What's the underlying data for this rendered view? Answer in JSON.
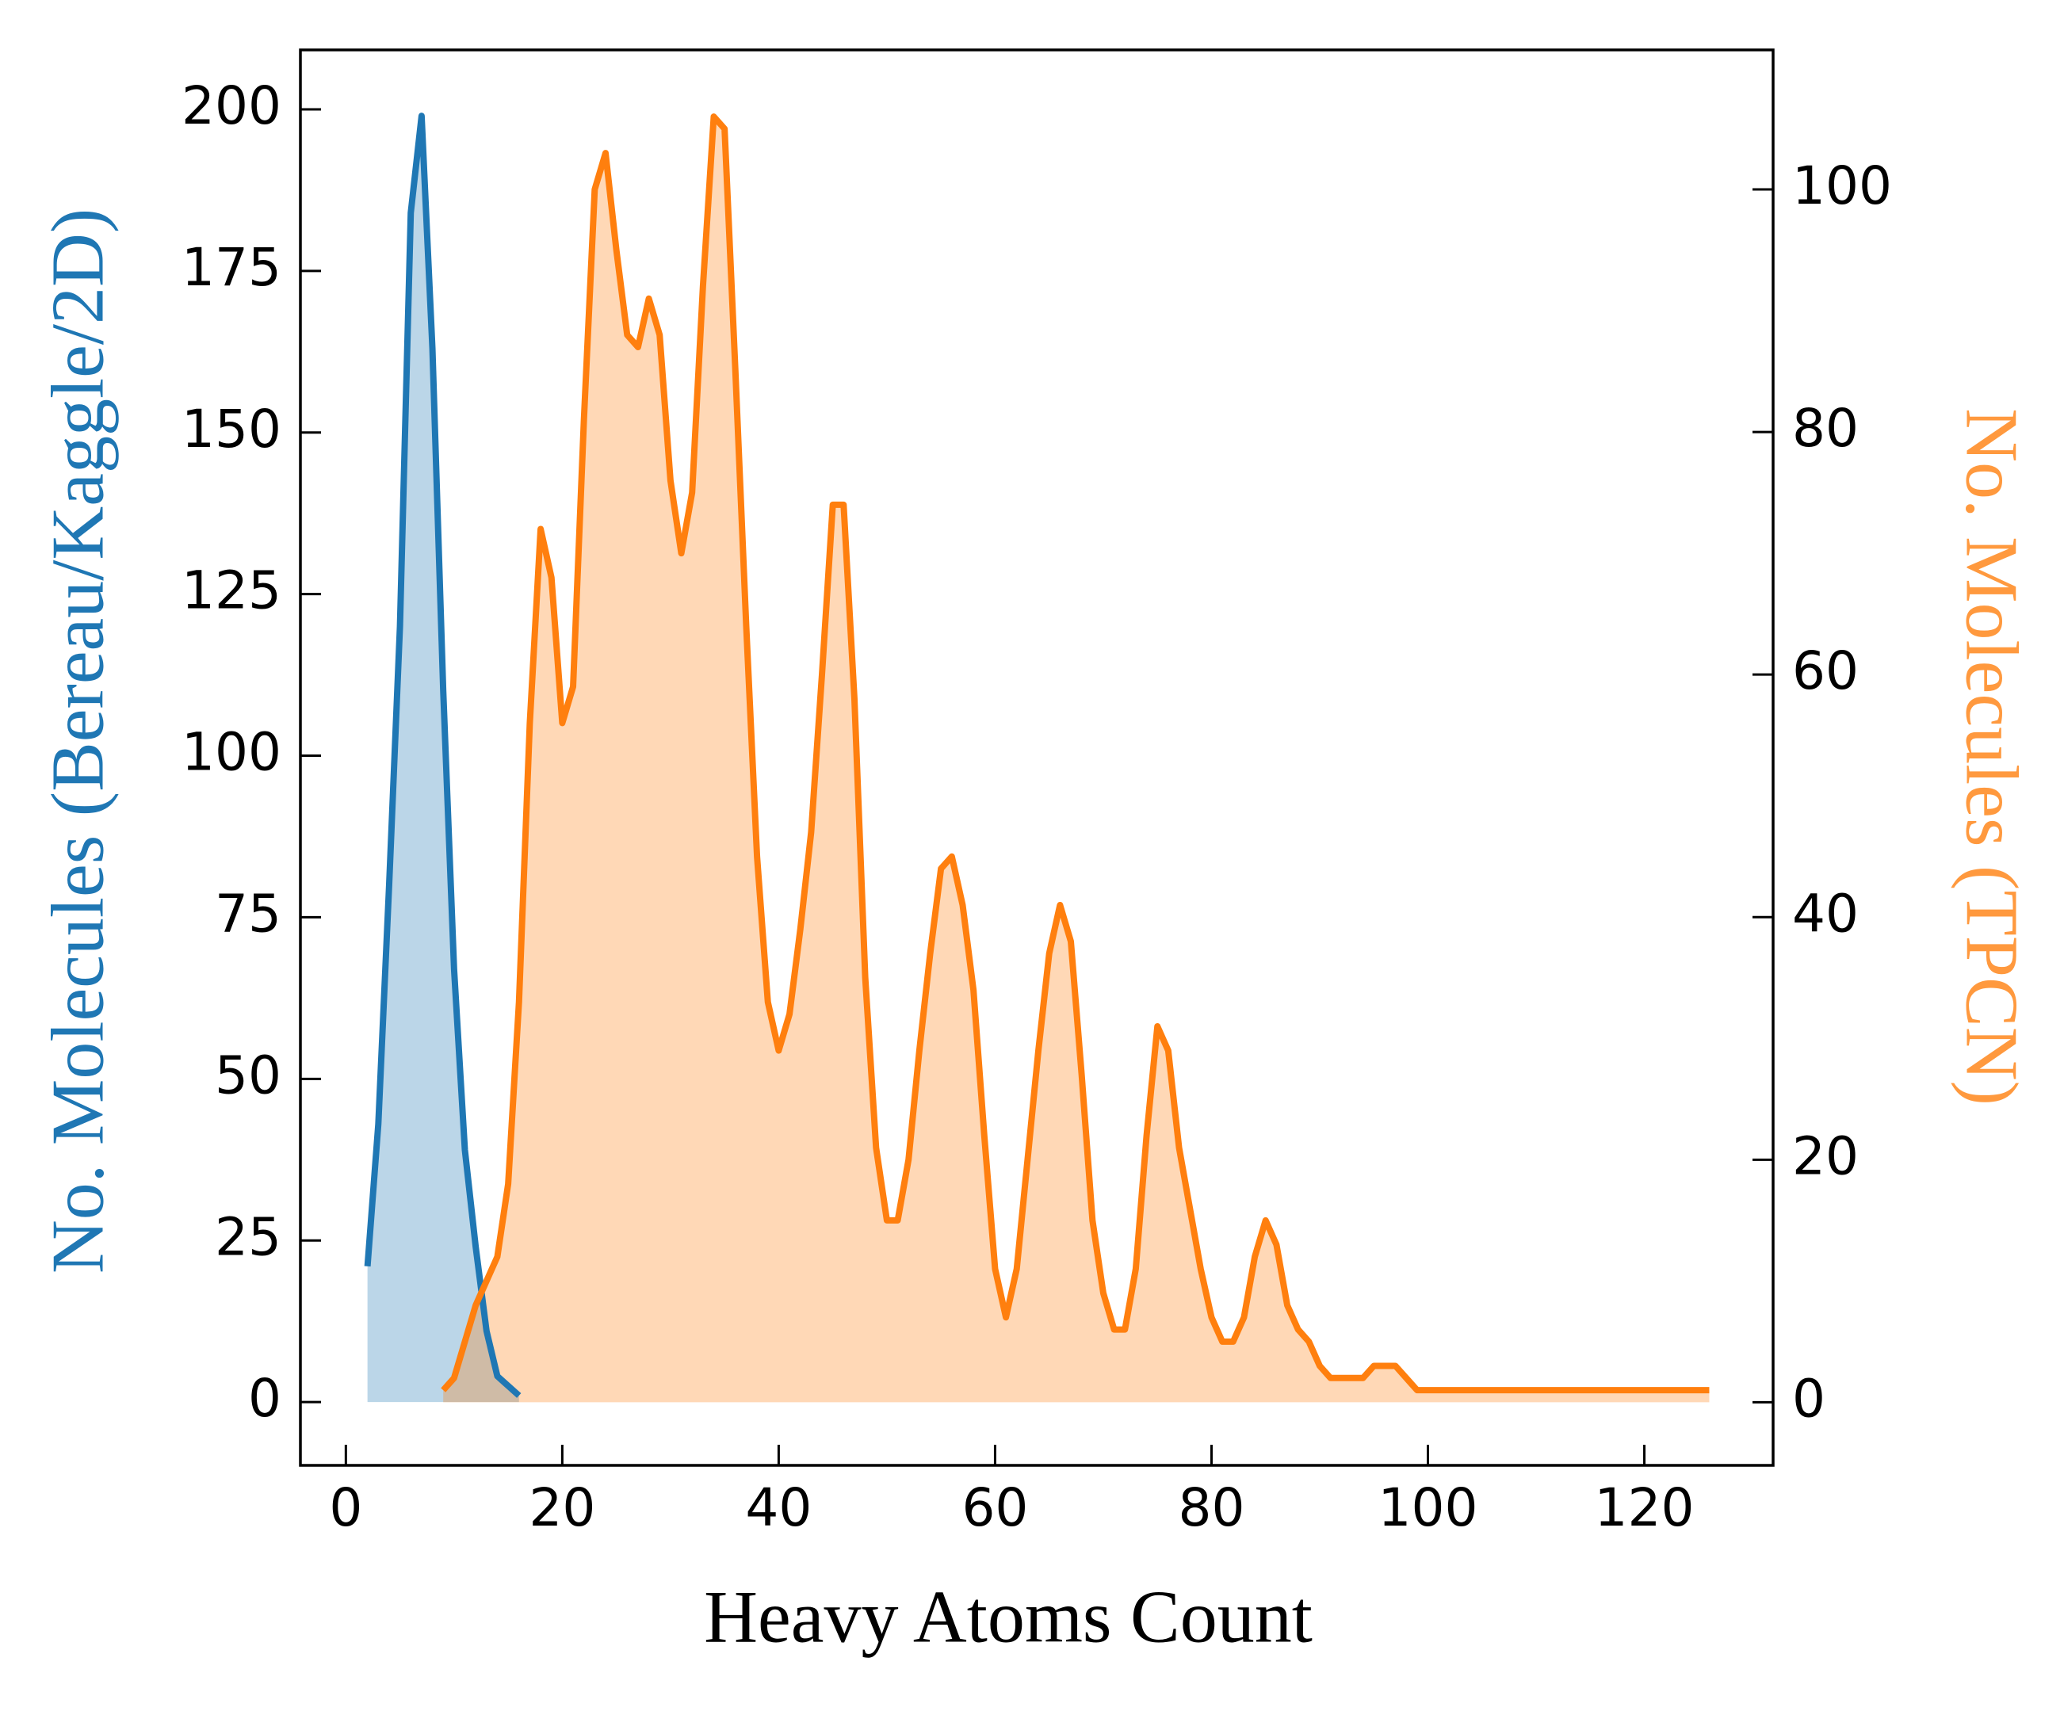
{
  "chart_data": {
    "type": "line",
    "xlabel": "Heavy Atoms Count",
    "ylabel": "No. Molecules (Bereau/Kaggle/2D)",
    "y2label": "No. Molecules (TPCN)",
    "xlim": [
      -4.2,
      131.9
    ],
    "xticks": [
      0,
      20,
      40,
      60,
      80,
      100,
      120
    ],
    "ylim": [
      -9.8,
      209.2
    ],
    "yticks": [
      0,
      25,
      50,
      75,
      100,
      125,
      150,
      175,
      200
    ],
    "y2lim": [
      -5.2,
      111.5
    ],
    "y2ticks": [
      0,
      20,
      40,
      60,
      80,
      100
    ],
    "fill": true,
    "series": [
      {
        "name": "Bereau/Kaggle/2D",
        "color": "#1f77b4",
        "axis": "y",
        "x": [
          2,
          3,
          4,
          5,
          6,
          7,
          8,
          9,
          10,
          11,
          12,
          13,
          14,
          15,
          16
        ],
        "values": [
          21,
          43,
          80,
          120,
          184,
          199,
          163,
          110,
          67,
          39,
          24,
          11,
          4,
          2.5,
          1
        ]
      },
      {
        "name": "TPCN",
        "color": "#ff7f0e",
        "axis": "y2",
        "x": [
          9,
          10,
          11,
          12,
          13,
          14,
          15,
          16,
          17,
          18,
          19,
          20,
          21,
          22,
          23,
          24,
          25,
          26,
          27,
          28,
          29,
          30,
          31,
          32,
          33,
          34,
          35,
          36,
          37,
          38,
          39,
          40,
          41,
          42,
          43,
          44,
          45,
          46,
          47,
          48,
          49,
          50,
          51,
          52,
          53,
          54,
          55,
          56,
          57,
          58,
          59,
          60,
          61,
          62,
          63,
          64,
          65,
          66,
          67,
          68,
          69,
          70,
          71,
          72,
          73,
          74,
          75,
          76,
          77,
          78,
          79,
          80,
          81,
          82,
          83,
          84,
          85,
          86,
          87,
          88,
          89,
          90,
          91,
          92,
          93,
          94,
          95,
          96,
          97,
          98,
          99,
          100,
          102,
          104,
          106,
          108,
          110,
          112,
          114,
          116,
          118,
          120,
          122,
          124,
          126
        ],
        "values": [
          1,
          2,
          5,
          8,
          10,
          12,
          18,
          33,
          56,
          72,
          68,
          56,
          59,
          81,
          100,
          103,
          95,
          88,
          87,
          91,
          88,
          76,
          70,
          75,
          92,
          106,
          105,
          85,
          64,
          45,
          33,
          29,
          32,
          39,
          47,
          60,
          74,
          74,
          58,
          35,
          21,
          15,
          15,
          20,
          29,
          37,
          44,
          45,
          41,
          34,
          22,
          11,
          7,
          11,
          20,
          29,
          37,
          41,
          38,
          27,
          15,
          9,
          6,
          6,
          11,
          22,
          31,
          29,
          21,
          16,
          11,
          7,
          5,
          5,
          7,
          12,
          15,
          13,
          8,
          6,
          5,
          3,
          2,
          2,
          2,
          2,
          3,
          3,
          3,
          2,
          1,
          1,
          1,
          1,
          1,
          1,
          1,
          1,
          1,
          1,
          1,
          1,
          1,
          1,
          1
        ]
      }
    ]
  }
}
